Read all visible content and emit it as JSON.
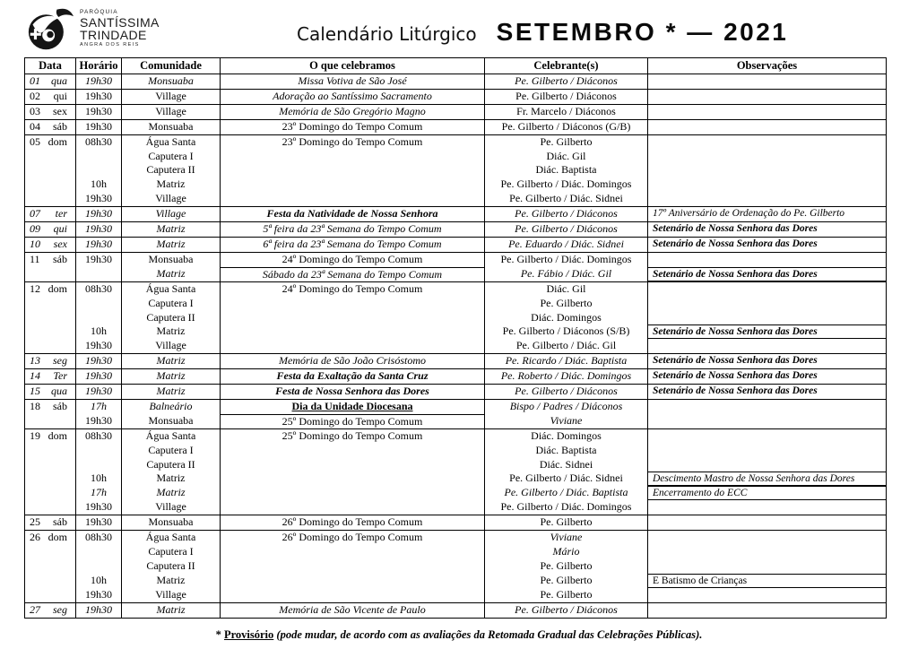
{
  "logo": {
    "line1": "PARÓQUIA",
    "line2": "SANTÍSSIMA",
    "line3": "TRINDADE",
    "line4": "ANGRA DOS REIS"
  },
  "title": {
    "left": "Calendário Litúrgico",
    "right": "SETEMBRO * — 2021"
  },
  "table": {
    "headers": [
      "Data",
      "Horário",
      "Comunidade",
      "O que celebramos",
      "Celebrante(s)",
      "Observações"
    ],
    "blocks": [
      {
        "day": "01",
        "weekday": "qua",
        "date_s": "i",
        "lines": [
          {
            "time": "19h30",
            "time_s": "i",
            "community": "Monsuaba",
            "community_s": "i",
            "celebration": "Missa Votiva de São José",
            "celebration_s": "i",
            "celebrant": "Pe. Gilberto / Diáconos",
            "celebrant_s": "i",
            "obs": ""
          }
        ]
      },
      {
        "day": "02",
        "weekday": "qui",
        "lines": [
          {
            "time": "19h30",
            "community": "Village",
            "celebration": "Adoração ao Santíssimo Sacramento",
            "celebration_s": "i",
            "celebrant": "Pe. Gilberto / Diáconos",
            "obs": ""
          }
        ]
      },
      {
        "day": "03",
        "weekday": "sex",
        "lines": [
          {
            "time": "19h30",
            "community": "Village",
            "celebration": "Memória de São Gregório Magno",
            "celebration_s": "i",
            "celebrant": "Fr. Marcelo / Diáconos",
            "obs": ""
          }
        ]
      },
      {
        "day": "04",
        "weekday": "sáb",
        "lines": [
          {
            "time": "19h30",
            "community": "Monsuaba",
            "celebration": "23º Domingo do Tempo Comum",
            "celebrant": "Pe. Gilberto / Diáconos (G/B)",
            "obs": ""
          }
        ]
      },
      {
        "day": "05",
        "weekday": "dom",
        "lines": [
          {
            "time": "08h30",
            "community": "Água Santa",
            "celebration": "23º Domingo do Tempo Comum",
            "celebrant": "Pe. Gilberto",
            "obs": ""
          },
          {
            "time": "",
            "community": "Caputera I",
            "celebration": "",
            "celebrant": "Diác. Gil",
            "obs": ""
          },
          {
            "time": "",
            "community": "Caputera II",
            "celebration": "",
            "celebrant": "Diác. Baptista",
            "obs": ""
          },
          {
            "time": "10h",
            "community": "Matriz",
            "celebration": "",
            "celebrant": "Pe. Gilberto / Diác. Domingos",
            "obs": ""
          },
          {
            "time": "19h30",
            "community": "Village",
            "celebration": "",
            "celebrant": "Pe. Gilberto / Diác. Sidnei",
            "obs": ""
          }
        ]
      },
      {
        "day": "07",
        "weekday": "ter",
        "date_s": "i",
        "lines": [
          {
            "time": "19h30",
            "time_s": "i",
            "community": "Village",
            "community_s": "i",
            "celebration": "Festa da Natividade de Nossa Senhora",
            "celebration_s": "bi",
            "celebrant": "Pe. Gilberto / Diáconos",
            "celebrant_s": "i",
            "obs": "17º Aniversário de Ordenação do Pe. Gilberto",
            "obs_s": "i"
          }
        ]
      },
      {
        "day": "09",
        "weekday": "qui",
        "date_s": "i",
        "lines": [
          {
            "time": "19h30",
            "time_s": "i",
            "community": "Matriz",
            "community_s": "i",
            "celebration": "5ª feira da 23ª Semana do Tempo Comum",
            "celebration_s": "i",
            "celebrant": "Pe. Gilberto / Diáconos",
            "celebrant_s": "i",
            "obs": "Setenário de Nossa Senhora das Dores",
            "obs_s": "bi"
          }
        ]
      },
      {
        "day": "10",
        "weekday": "sex",
        "date_s": "i",
        "lines": [
          {
            "time": "19h30",
            "time_s": "i",
            "community": "Matriz",
            "community_s": "i",
            "celebration": "6ª feira da 23ª Semana do Tempo Comum",
            "celebration_s": "i",
            "celebrant": "Pe. Eduardo / Diác. Sidnei",
            "celebrant_s": "i",
            "obs": "Setenário de Nossa Senhora das Dores",
            "obs_s": "bi"
          }
        ]
      },
      {
        "day": "11",
        "weekday": "sáb",
        "lines": [
          {
            "time": "19h30",
            "community": "Monsuaba",
            "celebration": "24º Domingo do Tempo Comum",
            "celebrant": "Pe. Gilberto / Diác. Domingos",
            "obs": ""
          },
          {
            "time": "",
            "community": "Matriz",
            "community_s": "i",
            "celebration": "Sábado da 23ª Semana do Tempo Comum",
            "celebration_s": "i",
            "celebration_divider": true,
            "celebrant": "Pe. Fábio / Diác. Gil",
            "celebrant_s": "i",
            "obs": "Setenário de Nossa Senhora das Dores",
            "obs_s": "bi",
            "obs_boxed": true
          }
        ]
      },
      {
        "day": "12",
        "weekday": "dom",
        "lines": [
          {
            "time": "08h30",
            "community": "Água Santa",
            "celebration": "24º Domingo do Tempo Comum",
            "celebrant": "Diác. Gil",
            "obs": ""
          },
          {
            "time": "",
            "community": "Caputera I",
            "celebration": "",
            "celebrant": "Pe. Gilberto",
            "obs": ""
          },
          {
            "time": "",
            "community": "Caputera II",
            "celebration": "",
            "celebrant": "Diác. Domingos",
            "obs": ""
          },
          {
            "time": "10h",
            "community": "Matriz",
            "celebration": "",
            "celebrant": "Pe. Gilberto / Diáconos (S/B)",
            "obs": "Setenário de Nossa Senhora das Dores",
            "obs_s": "bi",
            "obs_boxed": true
          },
          {
            "time": "19h30",
            "community": "Village",
            "celebration": "",
            "celebrant": "Pe. Gilberto / Diác. Gil",
            "obs": ""
          }
        ]
      },
      {
        "day": "13",
        "weekday": "seg",
        "date_s": "i",
        "lines": [
          {
            "time": "19h30",
            "time_s": "i",
            "community": "Matriz",
            "community_s": "i",
            "celebration": "Memória de São João Crisóstomo",
            "celebration_s": "i",
            "celebrant": "Pe. Ricardo / Diác. Baptista",
            "celebrant_s": "i",
            "obs": "Setenário de Nossa Senhora das Dores",
            "obs_s": "bi"
          }
        ]
      },
      {
        "day": "14",
        "weekday": "Ter",
        "date_s": "i",
        "lines": [
          {
            "time": "19h30",
            "time_s": "i",
            "community": "Matriz",
            "community_s": "i",
            "celebration": "Festa da Exaltação da Santa Cruz",
            "celebration_s": "bi",
            "celebrant": "Pe. Roberto / Diác. Domingos",
            "celebrant_s": "i",
            "obs": "Setenário de Nossa Senhora das Dores",
            "obs_s": "bi"
          }
        ]
      },
      {
        "day": "15",
        "weekday": "qua",
        "date_s": "i",
        "lines": [
          {
            "time": "19h30",
            "time_s": "i",
            "community": "Matriz",
            "community_s": "i",
            "celebration": "Festa de Nossa Senhora das Dores",
            "celebration_s": "bi",
            "celebrant": "Pe. Gilberto / Diáconos",
            "celebrant_s": "i",
            "obs": "Setenário de Nossa Senhora das Dores",
            "obs_s": "bi"
          }
        ]
      },
      {
        "day": "18",
        "weekday": "sáb",
        "lines": [
          {
            "time": "17h",
            "time_s": "i",
            "community": "Balneário",
            "community_s": "i",
            "celebration": "Dia da Unidade Diocesana",
            "celebration_s": "bu",
            "celebrant": "Bispo / Padres / Diáconos",
            "celebrant_s": "i",
            "obs": ""
          },
          {
            "time": "19h30",
            "community": "Monsuaba",
            "celebration": "25º Domingo do Tempo Comum",
            "celebration_divider": true,
            "celebrant": "Viviane",
            "celebrant_s": "i",
            "obs": ""
          }
        ]
      },
      {
        "day": "19",
        "weekday": "dom",
        "lines": [
          {
            "time": "08h30",
            "community": "Água Santa",
            "celebration": "25º Domingo do Tempo Comum",
            "celebrant": "Diác. Domingos",
            "obs": ""
          },
          {
            "time": "",
            "community": "Caputera I",
            "celebration": "",
            "celebrant": "Diác. Baptista",
            "obs": ""
          },
          {
            "time": "",
            "community": "Caputera II",
            "celebration": "",
            "celebrant": "Diác. Sidnei",
            "obs": ""
          },
          {
            "time": "10h",
            "community": "Matriz",
            "celebration": "",
            "celebrant": "Pe. Gilberto / Diác. Sidnei",
            "obs": "Descimento Mastro de Nossa Senhora das Dores",
            "obs_s": "i",
            "obs_boxed": true
          },
          {
            "time": "17h",
            "time_s": "i",
            "community": "Matriz",
            "community_s": "i",
            "celebration": "",
            "celebrant": "Pe. Gilberto / Diác. Baptista",
            "celebrant_s": "i",
            "obs": "Encerramento do ECC",
            "obs_s": "i",
            "obs_boxed": true
          },
          {
            "time": "19h30",
            "community": "Village",
            "celebration": "",
            "celebrant": "Pe. Gilberto / Diác. Domingos",
            "obs": ""
          }
        ]
      },
      {
        "day": "25",
        "weekday": "sáb",
        "lines": [
          {
            "time": "19h30",
            "community": "Monsuaba",
            "celebration": "26º Domingo do Tempo Comum",
            "celebrant": "Pe. Gilberto",
            "obs": ""
          }
        ]
      },
      {
        "day": "26",
        "weekday": "dom",
        "lines": [
          {
            "time": "08h30",
            "community": "Água Santa",
            "celebration": "26º Domingo do Tempo Comum",
            "celebrant": "Viviane",
            "celebrant_s": "i",
            "obs": ""
          },
          {
            "time": "",
            "community": "Caputera I",
            "celebration": "",
            "celebrant": "Mário",
            "celebrant_s": "i",
            "obs": ""
          },
          {
            "time": "",
            "community": "Caputera II",
            "celebration": "",
            "celebrant": "Pe. Gilberto",
            "obs": ""
          },
          {
            "time": "10h",
            "community": "Matriz",
            "celebration": "",
            "celebrant": "Pe. Gilberto",
            "obs": "E Batismo de Crianças",
            "obs_boxed": true
          },
          {
            "time": "19h30",
            "community": "Village",
            "celebration": "",
            "celebrant": "Pe. Gilberto",
            "obs": ""
          }
        ]
      },
      {
        "day": "27",
        "weekday": "seg",
        "date_s": "i",
        "lines": [
          {
            "time": "19h30",
            "time_s": "i",
            "community": "Matriz",
            "community_s": "i",
            "celebration": "Memória de São Vicente de Paulo",
            "celebration_s": "i",
            "celebrant": "Pe. Gilberto / Diáconos",
            "celebrant_s": "i",
            "obs": ""
          }
        ]
      }
    ]
  },
  "footer": {
    "prefix": "* ",
    "term": "Provisório",
    "rest": " (pode mudar, de acordo com as avaliações da Retomada Gradual das Celebrações Públicas)."
  }
}
